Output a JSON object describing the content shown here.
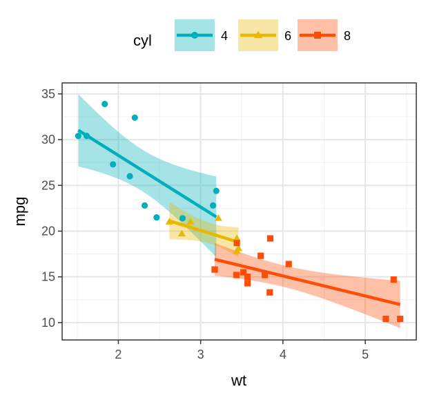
{
  "chart_data": {
    "type": "scatter",
    "xlabel": "wt",
    "ylabel": "mpg",
    "xlim": [
      1.317,
      5.62
    ],
    "ylim": [
      8.1,
      36.2
    ],
    "x_ticks": [
      "2",
      "3",
      "4",
      "5"
    ],
    "y_ticks": [
      "10",
      "15",
      "20",
      "25",
      "30",
      "35"
    ],
    "grid": true,
    "legend_placement": "top",
    "legend_title": "cyl",
    "smooth": "linear regression with confidence band",
    "series": [
      {
        "name": "4",
        "color": "#00AFBB",
        "marker": "circle",
        "x": [
          2.32,
          3.19,
          3.15,
          2.2,
          1.615,
          1.835,
          2.465,
          1.935,
          2.14,
          1.513,
          2.78
        ],
        "y": [
          22.8,
          24.4,
          22.8,
          32.4,
          30.4,
          33.9,
          21.5,
          27.3,
          26.0,
          30.4,
          21.4
        ]
      },
      {
        "name": "6",
        "color": "#E7B800",
        "marker": "triangle",
        "x": [
          2.62,
          2.875,
          3.215,
          3.46,
          3.44,
          3.44,
          2.77
        ],
        "y": [
          21.0,
          21.0,
          21.4,
          18.1,
          19.2,
          17.8,
          19.7
        ]
      },
      {
        "name": "8",
        "color": "#FC4E07",
        "marker": "square",
        "x": [
          3.44,
          3.57,
          4.07,
          3.73,
          3.78,
          5.25,
          5.424,
          5.345,
          3.52,
          3.435,
          3.84,
          3.845,
          3.17,
          3.57
        ],
        "y": [
          18.7,
          14.3,
          16.4,
          17.3,
          15.2,
          10.4,
          10.4,
          14.7,
          15.5,
          15.2,
          13.3,
          19.2,
          15.8,
          15.0
        ]
      }
    ]
  }
}
